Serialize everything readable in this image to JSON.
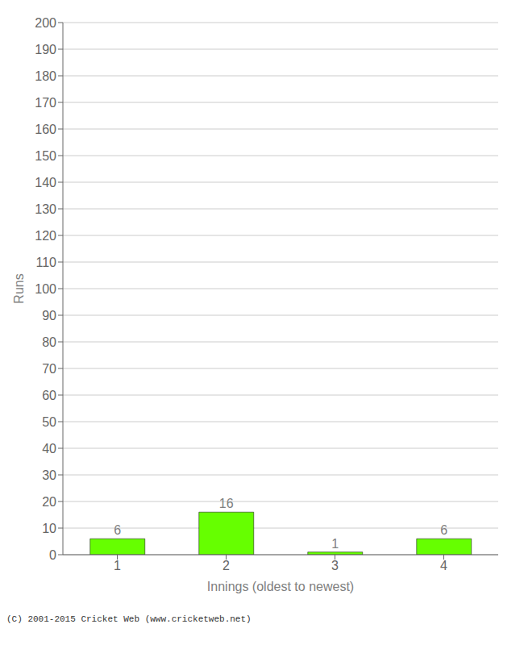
{
  "chart_data": {
    "type": "bar",
    "xlabel": "Innings (oldest to newest)",
    "ylabel": "Runs",
    "categories": [
      1,
      2,
      3,
      4
    ],
    "values": [
      6,
      16,
      1,
      6
    ],
    "color": "#66ff00",
    "ylim": [
      0,
      200
    ],
    "yticks": [
      0,
      10,
      20,
      30,
      40,
      50,
      60,
      70,
      80,
      90,
      100,
      110,
      120,
      130,
      140,
      150,
      160,
      170,
      180,
      190,
      200
    ],
    "grid": true,
    "data_labels": true,
    "annotations": [
      "(C) 2001-2015 Cricket Web (www.cricketweb.net)"
    ]
  }
}
